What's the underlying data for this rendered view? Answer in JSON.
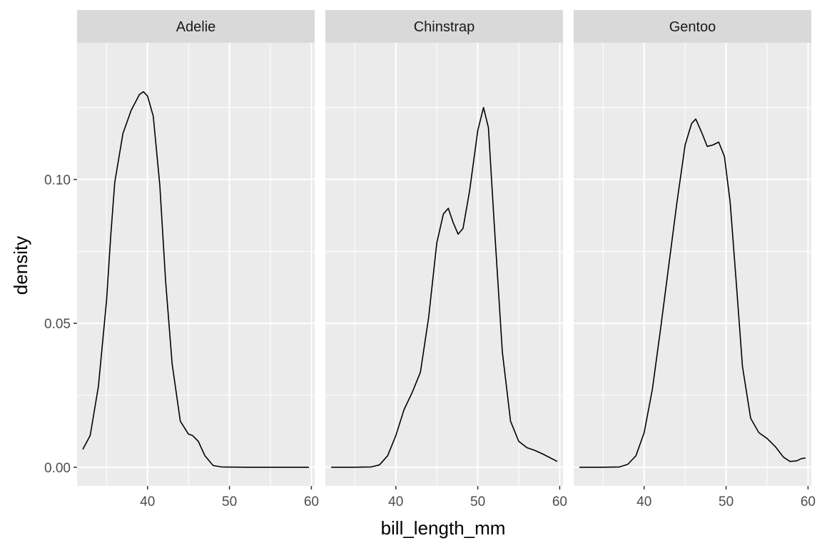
{
  "chart_data": {
    "type": "line",
    "xlabel": "bill_length_mm",
    "ylabel": "density",
    "xlim": [
      31.4,
      60.4
    ],
    "ylim": [
      -0.0065,
      0.1475
    ],
    "x_ticks": [
      40,
      50,
      60
    ],
    "x_tick_labels": [
      "40",
      "50",
      "60"
    ],
    "y_ticks": [
      0,
      0.05,
      0.1
    ],
    "y_tick_labels": [
      "0.00",
      "0.05",
      "0.10"
    ],
    "grid": true,
    "panels": [
      {
        "name": "Adelie",
        "points": [
          [
            32.1,
            0.0062
          ],
          [
            33.0,
            0.011
          ],
          [
            34.0,
            0.028
          ],
          [
            35.0,
            0.058
          ],
          [
            35.5,
            0.08
          ],
          [
            36.0,
            0.099
          ],
          [
            37.0,
            0.116
          ],
          [
            38.0,
            0.124
          ],
          [
            39.0,
            0.1295
          ],
          [
            39.5,
            0.1305
          ],
          [
            40.0,
            0.129
          ],
          [
            40.7,
            0.122
          ],
          [
            41.5,
            0.098
          ],
          [
            42.2,
            0.065
          ],
          [
            43.0,
            0.036
          ],
          [
            44.0,
            0.016
          ],
          [
            45.0,
            0.0115
          ],
          [
            45.5,
            0.011
          ],
          [
            46.2,
            0.009
          ],
          [
            47.0,
            0.004
          ],
          [
            48.0,
            0.0006
          ],
          [
            49.0,
            0.0001
          ],
          [
            52.0,
            0.0
          ],
          [
            56.0,
            0.0
          ],
          [
            59.7,
            0.0
          ]
        ]
      },
      {
        "name": "Chinstrap",
        "points": [
          [
            32.1,
            0.0
          ],
          [
            35.0,
            0.0
          ],
          [
            37.0,
            0.0001
          ],
          [
            38.0,
            0.0008
          ],
          [
            39.0,
            0.004
          ],
          [
            40.0,
            0.011
          ],
          [
            41.0,
            0.02
          ],
          [
            42.0,
            0.026
          ],
          [
            43.0,
            0.033
          ],
          [
            44.0,
            0.052
          ],
          [
            45.0,
            0.078
          ],
          [
            45.8,
            0.088
          ],
          [
            46.4,
            0.09
          ],
          [
            47.0,
            0.085
          ],
          [
            47.6,
            0.081
          ],
          [
            48.2,
            0.083
          ],
          [
            49.0,
            0.096
          ],
          [
            50.0,
            0.117
          ],
          [
            50.7,
            0.125
          ],
          [
            51.3,
            0.118
          ],
          [
            52.0,
            0.085
          ],
          [
            53.0,
            0.04
          ],
          [
            54.0,
            0.016
          ],
          [
            55.0,
            0.009
          ],
          [
            56.0,
            0.0068
          ],
          [
            57.0,
            0.0058
          ],
          [
            58.0,
            0.0045
          ],
          [
            59.7,
            0.002
          ]
        ]
      },
      {
        "name": "Gentoo",
        "points": [
          [
            32.1,
            0.0
          ],
          [
            35.0,
            0.0
          ],
          [
            37.0,
            0.0001
          ],
          [
            38.0,
            0.001
          ],
          [
            39.0,
            0.004
          ],
          [
            40.0,
            0.012
          ],
          [
            41.0,
            0.027
          ],
          [
            42.0,
            0.048
          ],
          [
            43.0,
            0.07
          ],
          [
            44.0,
            0.092
          ],
          [
            45.0,
            0.112
          ],
          [
            45.8,
            0.1195
          ],
          [
            46.3,
            0.121
          ],
          [
            47.0,
            0.1165
          ],
          [
            47.7,
            0.1115
          ],
          [
            48.4,
            0.112
          ],
          [
            49.1,
            0.113
          ],
          [
            49.8,
            0.108
          ],
          [
            50.5,
            0.092
          ],
          [
            51.3,
            0.062
          ],
          [
            52.0,
            0.035
          ],
          [
            53.0,
            0.017
          ],
          [
            54.0,
            0.012
          ],
          [
            55.0,
            0.01
          ],
          [
            56.0,
            0.0072
          ],
          [
            57.0,
            0.0035
          ],
          [
            57.8,
            0.002
          ],
          [
            58.6,
            0.0022
          ],
          [
            59.2,
            0.003
          ],
          [
            59.7,
            0.0032
          ]
        ]
      }
    ]
  }
}
